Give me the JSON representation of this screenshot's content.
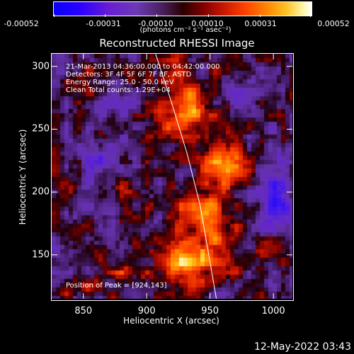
{
  "colorbar": {
    "tick_labels": [
      "-0.00052",
      "-0.00031",
      "-0.00010",
      "0.00010",
      "0.00031",
      "0.00052"
    ],
    "units": "(photons cm⁻² s⁻¹ asec⁻²)",
    "min": -0.00052,
    "max": 0.00052
  },
  "chart_data": {
    "type": "heatmap",
    "title": "Reconstructed RHESSI Image",
    "xlabel": "Heliocentric X (arcsec)",
    "ylabel": "Heliocentric Y (arcsec)",
    "xlim": [
      825,
      1015
    ],
    "ylim": [
      115,
      310
    ],
    "x_ticks": [
      850,
      900,
      950,
      1000
    ],
    "y_ticks": [
      150,
      200,
      250,
      300
    ],
    "annotations": [
      "21-Mar-2013 04:36:00.000 to 04:42:00.000",
      "Detectors: 3F 4F 5F 6F 7F 8F, ASTD",
      "Energy Range: 25.0 - 50.0 keV",
      "Clean     Total counts: 1.29E+04"
    ],
    "peak_label": "Position of Peak = [924,143]",
    "peak": [
      924,
      143
    ],
    "limb_curve": [
      [
        907,
        310
      ],
      [
        920,
        270
      ],
      [
        932,
        230
      ],
      [
        942,
        190
      ],
      [
        949,
        150
      ],
      [
        955,
        115
      ]
    ],
    "sources": [
      {
        "x": 930,
        "y": 143,
        "amp": 1.0,
        "sx": 14,
        "sy": 12
      },
      {
        "x": 960,
        "y": 225,
        "amp": 0.85,
        "sx": 12,
        "sy": 15
      },
      {
        "x": 942,
        "y": 185,
        "amp": 0.65,
        "sx": 16,
        "sy": 12
      },
      {
        "x": 935,
        "y": 265,
        "amp": 0.6,
        "sx": 12,
        "sy": 15
      },
      {
        "x": 910,
        "y": 245,
        "amp": 0.45,
        "sx": 10,
        "sy": 10
      },
      {
        "x": 922,
        "y": 290,
        "amp": 0.55,
        "sx": 10,
        "sy": 12
      },
      {
        "x": 958,
        "y": 160,
        "amp": 0.5,
        "sx": 10,
        "sy": 14
      },
      {
        "x": 880,
        "y": 205,
        "amp": 0.35,
        "sx": 9,
        "sy": 9
      },
      {
        "x": 850,
        "y": 125,
        "amp": 0.35,
        "sx": 10,
        "sy": 8
      },
      {
        "x": 995,
        "y": 150,
        "amp": 0.3,
        "sx": 10,
        "sy": 8
      },
      {
        "x": 850,
        "y": 290,
        "amp": 0.3,
        "sx": 8,
        "sy": 8
      },
      {
        "x": 835,
        "y": 200,
        "amp": 0.25,
        "sx": 8,
        "sy": 12
      },
      {
        "x": 885,
        "y": 140,
        "amp": 0.4,
        "sx": 10,
        "sy": 10
      },
      {
        "x": 1000,
        "y": 200,
        "amp": -0.55,
        "sx": 10,
        "sy": 18
      },
      {
        "x": 865,
        "y": 225,
        "amp": -0.35,
        "sx": 14,
        "sy": 14
      },
      {
        "x": 875,
        "y": 270,
        "amp": -0.25,
        "sx": 12,
        "sy": 10
      },
      {
        "x": 980,
        "y": 270,
        "amp": -0.2,
        "sx": 12,
        "sy": 12
      }
    ]
  },
  "footer": {
    "timestamp": "12-May-2022 03:43"
  }
}
